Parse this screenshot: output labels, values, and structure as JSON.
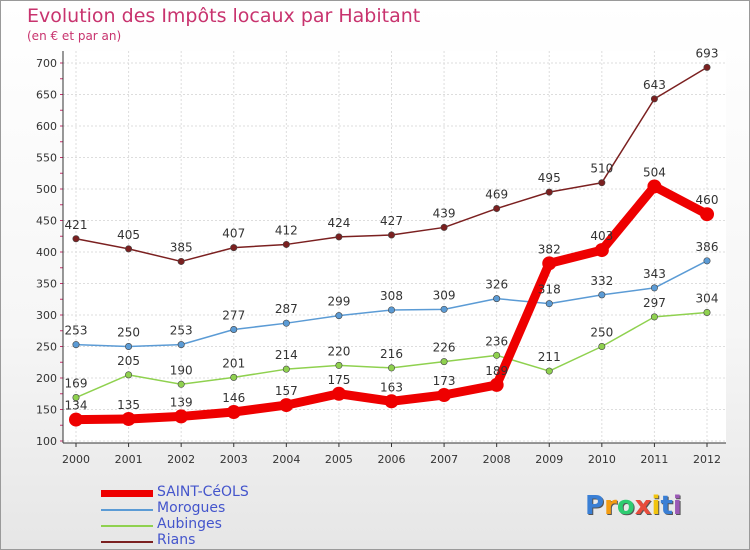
{
  "chart_data": {
    "type": "line",
    "title": "Evolution des Impôts locaux par Habitant",
    "subtitle": "(en € et par an)",
    "xlabel": "",
    "ylabel": "",
    "ylim": [
      100,
      700
    ],
    "yticks": [
      100,
      150,
      200,
      250,
      300,
      350,
      400,
      450,
      500,
      550,
      600,
      650,
      700
    ],
    "categories": [
      "2000",
      "2001",
      "2002",
      "2003",
      "2004",
      "2005",
      "2006",
      "2007",
      "2008",
      "2009",
      "2010",
      "2011",
      "2012"
    ],
    "grid": true,
    "legend_position": "bottom-left",
    "series": [
      {
        "name": "SAINT-CéOLS",
        "color": "#ee0000",
        "values": [
          134,
          135,
          139,
          146,
          157,
          175,
          163,
          173,
          189,
          382,
          403,
          504,
          460
        ]
      },
      {
        "name": "Morogues",
        "color": "#5b9bd5",
        "values": [
          253,
          250,
          253,
          277,
          287,
          299,
          308,
          309,
          326,
          318,
          332,
          343,
          386
        ]
      },
      {
        "name": "Aubinges",
        "color": "#8fd14f",
        "values": [
          169,
          205,
          190,
          201,
          214,
          220,
          216,
          226,
          236,
          211,
          250,
          297,
          304
        ]
      },
      {
        "name": "Rians",
        "color": "#7b2020",
        "values": [
          421,
          405,
          385,
          407,
          412,
          424,
          427,
          439,
          469,
          495,
          510,
          643,
          693
        ]
      }
    ]
  },
  "logo": {
    "letters": [
      "P",
      "r",
      "o",
      "x",
      "i",
      "t",
      "i"
    ],
    "colors": [
      "#3a7fd5",
      "#f39c12",
      "#2ecc71",
      "#e74c3c",
      "#f1c40f",
      "#3a7fd5",
      "#9b59b6"
    ]
  }
}
